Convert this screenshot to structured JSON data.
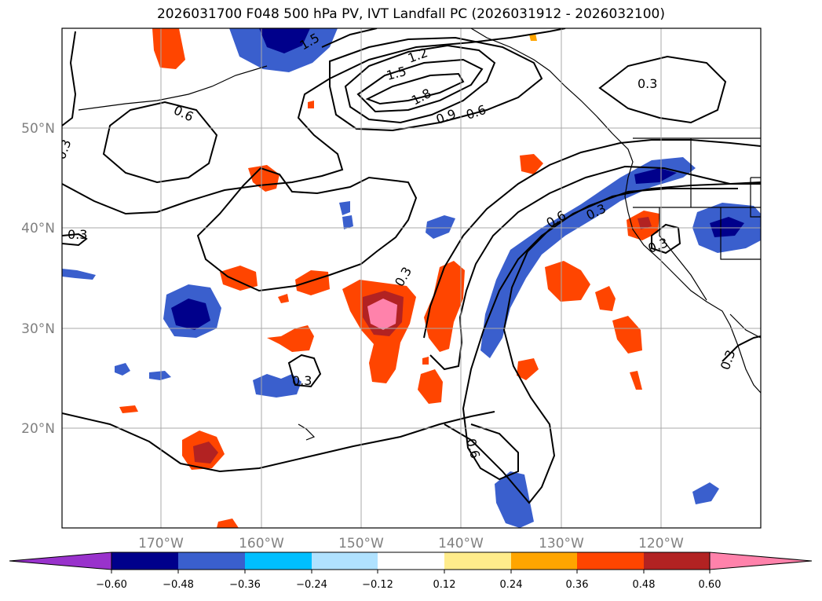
{
  "title": "2026031700 F048 500 hPa PV, IVT Landfall PC (2026031912 - 2026032100)",
  "latitude_labels": [
    "50°N",
    "40°N",
    "30°N",
    "20°N"
  ],
  "longitude_labels": [
    "170°W",
    "160°W",
    "150°W",
    "140°W",
    "130°W",
    "120°W"
  ],
  "contour_labels": [
    "1.8",
    "1.5",
    "1.2",
    "0.9",
    "0.6",
    "0.6",
    "0.3",
    "0.3",
    "0.3",
    "0.3",
    "0.6",
    "0.3",
    "0.3",
    "0.3",
    "1.5",
    "0.3",
    "0.6"
  ],
  "colorbar": {
    "ticks": [
      "−0.60",
      "−0.48",
      "−0.36",
      "−0.24",
      "−0.12",
      "0.12",
      "0.24",
      "0.36",
      "0.48",
      "0.60"
    ],
    "colors": [
      "#9932cc",
      "#00008b",
      "#3a5fcd",
      "#00bfff",
      "#b0e2ff",
      "#ffffff",
      "#ffec8b",
      "#ffa500",
      "#ff4500",
      "#b22222",
      "#ff82ab"
    ]
  },
  "colors": {
    "land_line": "#000000",
    "grid": "#a9a9a9",
    "label_gray": "#808080",
    "pos_strong": "#ff82ab",
    "pos_high": "#b22222",
    "pos_mid": "#ff4500",
    "pos_low": "#ffa500",
    "pos_weak": "#ffec8b",
    "neg_strong": "#00008b",
    "neg_mid": "#3a5fcd",
    "neg_low": "#00bfff",
    "neg_weak": "#b0e2ff"
  }
}
